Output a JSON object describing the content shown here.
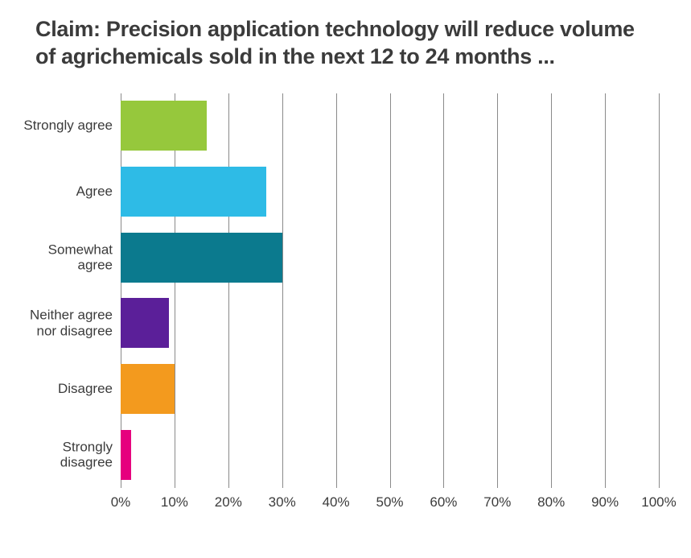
{
  "chart": {
    "type": "bar-horizontal",
    "title": "Claim: Precision application technology will reduce volume of agrichemicals sold in the next 12 to 24 months ...",
    "title_fontsize": 27,
    "title_color": "#3b3b3b",
    "background_color": "#ffffff",
    "grid_color": "#8a8a8a",
    "label_color": "#3b3b3b",
    "label_fontsize": 17,
    "x_axis": {
      "min": 0,
      "max": 100,
      "tick_step": 10,
      "ticks": [
        "0%",
        "10%",
        "20%",
        "30%",
        "40%",
        "50%",
        "60%",
        "70%",
        "80%",
        "90%",
        "100%"
      ]
    },
    "categories": [
      {
        "label": "Strongly agree",
        "value": 16,
        "color": "#96c83c"
      },
      {
        "label": "Agree",
        "value": 27,
        "color": "#2ebbe6"
      },
      {
        "label": "Somewhat agree",
        "value": 30,
        "color": "#0b7a8e"
      },
      {
        "label": "Neither agree nor disagree",
        "value": 9,
        "color": "#5b1f99"
      },
      {
        "label": "Disagree",
        "value": 10,
        "color": "#f39a1e"
      },
      {
        "label": "Strongly disagree",
        "value": 2,
        "color": "#e6007e"
      }
    ],
    "bar_gap_ratio": 0.24,
    "axis_line_width": 1
  }
}
